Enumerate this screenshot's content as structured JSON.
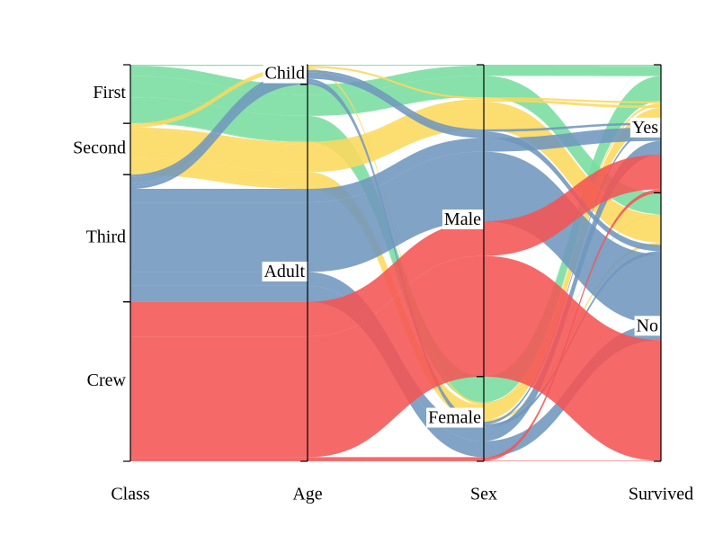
{
  "chart_data": {
    "type": "parallel_sets",
    "dimensions": [
      {
        "name": "Class",
        "categories": [
          "First",
          "Second",
          "Third",
          "Crew"
        ]
      },
      {
        "name": "Age",
        "categories": [
          "Child",
          "Adult"
        ]
      },
      {
        "name": "Sex",
        "categories": [
          "Male",
          "Female"
        ]
      },
      {
        "name": "Survived",
        "categories": [
          "Yes",
          "No"
        ]
      }
    ],
    "colors": [
      "#77dd9f",
      "#fcd85c",
      "#6f96bd",
      "#f45454"
    ],
    "counts": [
      [
        [
          [
            5,
            0
          ],
          [
            1,
            0
          ]
        ],
        [
          [
            57,
            118
          ],
          [
            140,
            4
          ]
        ]
      ],
      [
        [
          [
            11,
            0
          ],
          [
            13,
            0
          ]
        ],
        [
          [
            14,
            154
          ],
          [
            80,
            13
          ]
        ]
      ],
      [
        [
          [
            13,
            35
          ],
          [
            14,
            17
          ]
        ],
        [
          [
            75,
            387
          ],
          [
            76,
            89
          ]
        ]
      ],
      [
        [
          [
            0,
            0
          ],
          [
            0,
            0
          ]
        ],
        [
          [
            192,
            670
          ],
          [
            20,
            3
          ]
        ]
      ]
    ]
  }
}
